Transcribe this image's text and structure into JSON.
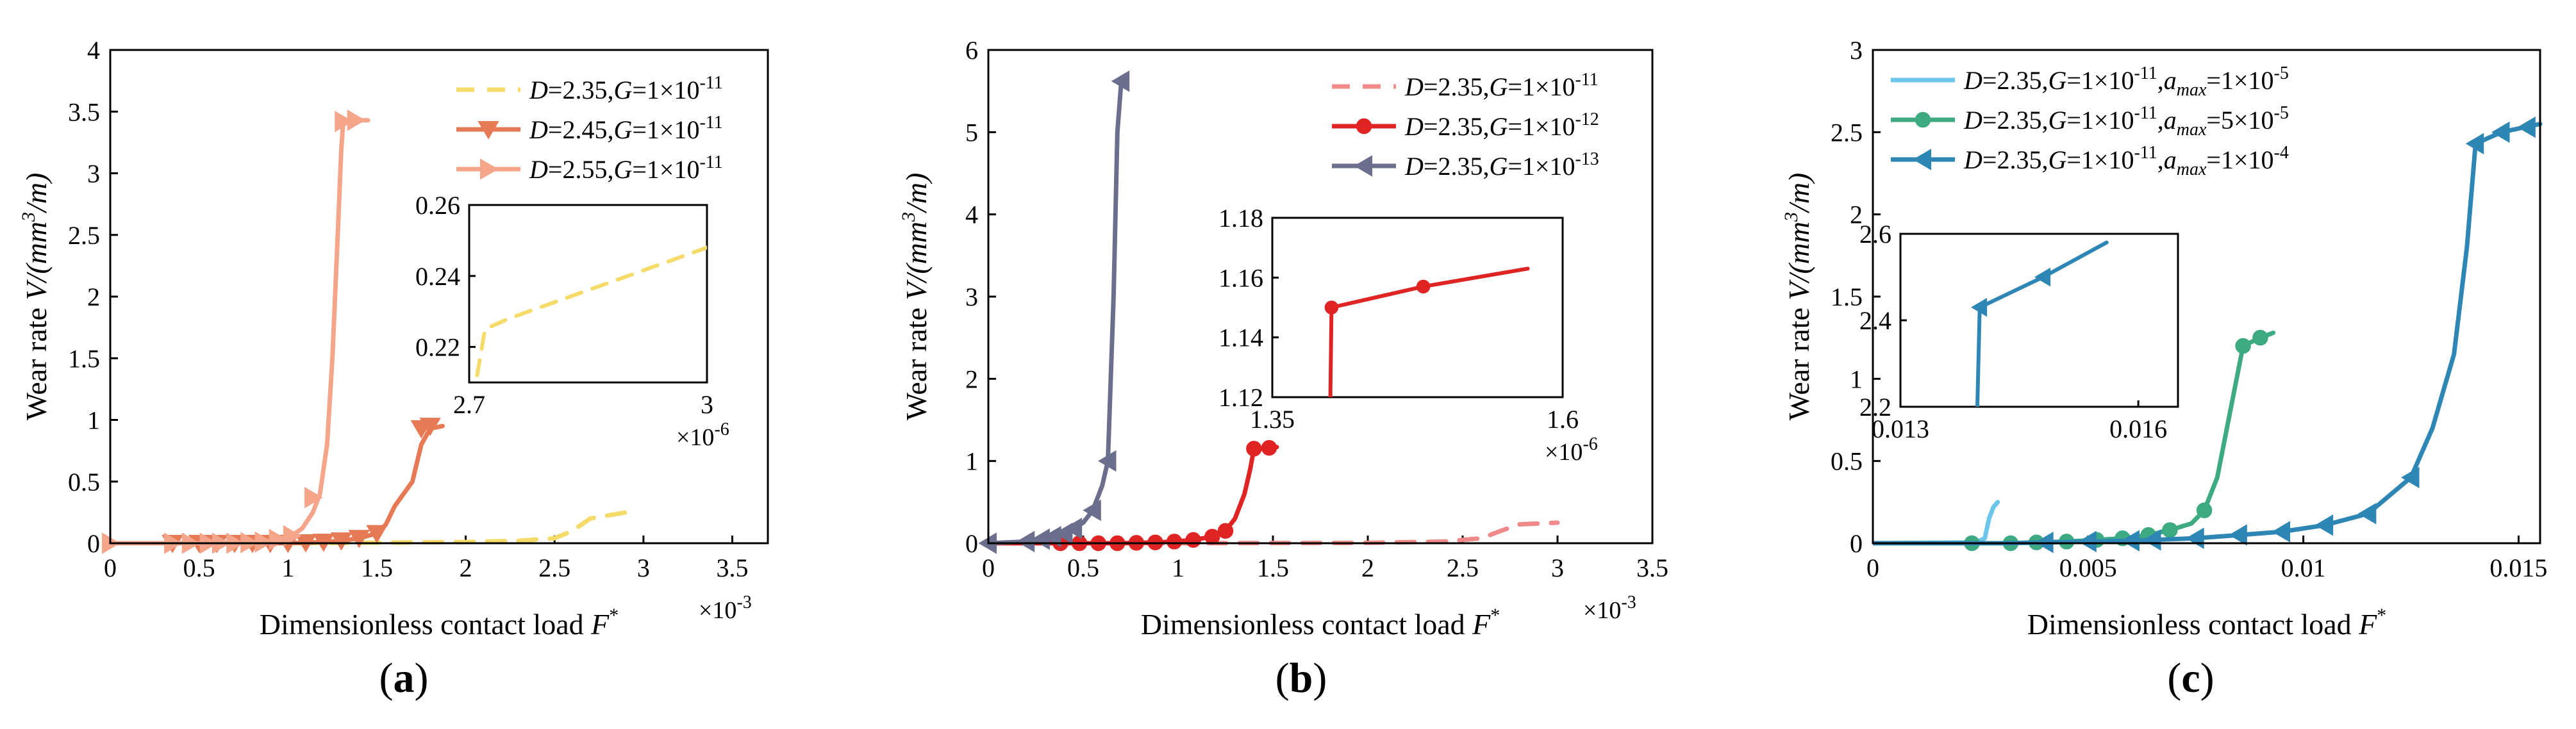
{
  "panels": [
    {
      "id": "a",
      "panel_label": "a",
      "x_multiplier": {
        "base": "×10",
        "exp": "-3"
      },
      "inset_multiplier": {
        "base": "×10",
        "exp": "-6"
      }
    },
    {
      "id": "b",
      "panel_label": "b",
      "x_multiplier": {
        "base": "×10",
        "exp": "-3"
      },
      "inset_multiplier": {
        "base": "×10",
        "exp": "-6"
      }
    },
    {
      "id": "c",
      "panel_label": "c",
      "x_multiplier": null,
      "inset_multiplier": null
    }
  ],
  "chart_data": [
    {
      "type": "line",
      "panel": "a",
      "xlabel": "Dimensionless contact load F*",
      "ylabel": "Wear rate V/(mm³/m)",
      "xlim": [
        0,
        3.7
      ],
      "ylim": [
        0,
        4
      ],
      "xticks": [
        0,
        0.5,
        1,
        1.5,
        2,
        2.5,
        3,
        3.5
      ],
      "xticklabels": [
        "0",
        "0.5",
        "1",
        "1.5",
        "2",
        "2.5",
        "3",
        "3.5"
      ],
      "yticks": [
        0,
        0.5,
        1,
        1.5,
        2,
        2.5,
        3,
        3.5,
        4
      ],
      "yticklabels": [
        "0",
        "0.5",
        "1",
        "1.5",
        "2",
        "2.5",
        "3",
        "3.5",
        "4"
      ],
      "legend_position": "top-right",
      "series": [
        {
          "name": "D=2.35,G=1×10⁻¹¹",
          "color": "#f5dc6a",
          "style": "dashed",
          "marker": "none",
          "x": [
            0,
            0.5,
            1.0,
            1.5,
            2.0,
            2.3,
            2.5,
            2.6,
            2.7,
            2.9
          ],
          "y": [
            0,
            0,
            0,
            0.005,
            0.01,
            0.02,
            0.04,
            0.1,
            0.2,
            0.25
          ]
        },
        {
          "name": "D=2.45,G=1×10⁻¹¹",
          "color": "#e57a55",
          "style": "solid",
          "marker": "triangle-down",
          "x": [
            0,
            0.35,
            0.5,
            0.6,
            0.7,
            0.8,
            0.9,
            1.0,
            1.1,
            1.2,
            1.3,
            1.4,
            1.5,
            1.55,
            1.6,
            1.7,
            1.75,
            1.8,
            1.87
          ],
          "y": [
            0,
            0,
            0,
            0,
            0,
            0,
            0,
            0,
            0.005,
            0.01,
            0.02,
            0.04,
            0.08,
            0.15,
            0.3,
            0.5,
            0.8,
            0.93,
            0.95
          ],
          "marker_x": [
            0.35,
            0.5,
            0.6,
            0.7,
            0.8,
            0.9,
            1.0,
            1.1,
            1.2,
            1.3,
            1.4,
            1.5,
            1.75,
            1.8
          ],
          "marker_y": [
            0,
            0,
            0,
            0,
            0,
            0,
            0,
            0.005,
            0.01,
            0.02,
            0.04,
            0.08,
            0.93,
            0.95
          ]
        },
        {
          "name": "D=2.55,G=1×10⁻¹¹",
          "color": "#f4a58a",
          "style": "solid",
          "marker": "triangle-right",
          "x": [
            0,
            0.35,
            0.45,
            0.55,
            0.62,
            0.7,
            0.78,
            0.86,
            0.94,
            1.02,
            1.08,
            1.14,
            1.18,
            1.22,
            1.25,
            1.28,
            1.3,
            1.31,
            1.34,
            1.38,
            1.45
          ],
          "y": [
            0,
            0,
            0,
            0,
            0,
            0,
            0.005,
            0.01,
            0.03,
            0.06,
            0.12,
            0.25,
            0.4,
            0.8,
            1.5,
            2.5,
            3.2,
            3.4,
            3.42,
            3.43,
            3.43
          ],
          "marker_x": [
            0,
            0.35,
            0.45,
            0.55,
            0.62,
            0.7,
            0.78,
            0.86,
            0.94,
            1.02,
            1.14,
            1.31,
            1.38
          ],
          "marker_y": [
            0,
            0,
            0,
            0,
            0,
            0,
            0.005,
            0.01,
            0.03,
            0.06,
            0.37,
            3.42,
            3.43
          ]
        }
      ],
      "inset": {
        "xlim": [
          2.7,
          3.0
        ],
        "ylim": [
          0.21,
          0.26
        ],
        "xticks": [
          2.7,
          3
        ],
        "xticklabels": [
          "2.7",
          "3"
        ],
        "yticks": [
          0.22,
          0.24,
          0.26
        ],
        "yticklabels": [
          "0.22",
          "0.24",
          "0.26"
        ],
        "series": [
          {
            "color": "#f5dc6a",
            "style": "dashed",
            "x": [
              2.71,
              2.72,
              2.75,
              2.85,
              3.0
            ],
            "y": [
              0.212,
              0.225,
              0.228,
              0.236,
              0.248
            ]
          }
        ]
      }
    },
    {
      "type": "line",
      "panel": "b",
      "xlabel": "Dimensionless contact load F*",
      "ylabel": "Wear rate V/(mm³/m)",
      "xlim": [
        0,
        3.5
      ],
      "ylim": [
        0,
        6
      ],
      "xticks": [
        0,
        0.5,
        1,
        1.5,
        2,
        2.5,
        3,
        3.5
      ],
      "xticklabels": [
        "0",
        "0.5",
        "1",
        "1.5",
        "2",
        "2.5",
        "3",
        "3.5"
      ],
      "yticks": [
        0,
        1,
        2,
        3,
        4,
        5,
        6
      ],
      "yticklabels": [
        "0",
        "1",
        "2",
        "3",
        "4",
        "5",
        "6"
      ],
      "legend_position": "top-right",
      "series": [
        {
          "name": "D=2.35,G=1×10⁻¹¹",
          "color": "#f08a8a",
          "style": "dashed",
          "marker": "none",
          "x": [
            0,
            1.0,
            2.0,
            2.4,
            2.6,
            2.7,
            2.8,
            3.0
          ],
          "y": [
            0,
            0,
            0.005,
            0.02,
            0.06,
            0.15,
            0.23,
            0.25
          ]
        },
        {
          "name": "D=2.35,G=1×10⁻¹²",
          "color": "#e02424",
          "style": "solid",
          "marker": "circle",
          "x": [
            0,
            0.38,
            0.48,
            0.58,
            0.68,
            0.78,
            0.88,
            0.98,
            1.08,
            1.18,
            1.25,
            1.3,
            1.35,
            1.38,
            1.4,
            1.48,
            1.52
          ],
          "y": [
            0,
            0,
            0,
            0,
            0,
            0.005,
            0.01,
            0.02,
            0.04,
            0.08,
            0.15,
            0.3,
            0.6,
            0.9,
            1.15,
            1.16,
            1.17
          ],
          "marker_x": [
            0.38,
            0.48,
            0.58,
            0.68,
            0.78,
            0.88,
            0.98,
            1.08,
            1.18,
            1.25,
            1.4,
            1.48
          ],
          "marker_y": [
            0,
            0,
            0,
            0,
            0.005,
            0.01,
            0.02,
            0.04,
            0.08,
            0.15,
            1.15,
            1.16
          ]
        },
        {
          "name": "D=2.35,G=1×10⁻¹³",
          "color": "#6b6e8c",
          "style": "solid",
          "marker": "triangle-left",
          "x": [
            0,
            0.2,
            0.28,
            0.34,
            0.4,
            0.45,
            0.5,
            0.55,
            0.6,
            0.63,
            0.66,
            0.68,
            0.7,
            0.73
          ],
          "y": [
            0,
            0.02,
            0.05,
            0.08,
            0.12,
            0.18,
            0.25,
            0.4,
            0.7,
            1.0,
            3.0,
            5.0,
            5.6,
            5.62
          ],
          "marker_x": [
            0,
            0.2,
            0.28,
            0.34,
            0.4,
            0.45,
            0.55,
            0.63,
            0.7
          ],
          "marker_y": [
            0,
            0.02,
            0.05,
            0.08,
            0.12,
            0.18,
            0.4,
            1.0,
            5.62
          ]
        }
      ],
      "inset": {
        "xlim": [
          1.35,
          1.6
        ],
        "ylim": [
          1.12,
          1.18
        ],
        "xticks": [
          1.35,
          1.6
        ],
        "xticklabels": [
          "1.35",
          "1.6"
        ],
        "yticks": [
          1.12,
          1.14,
          1.16,
          1.18
        ],
        "yticklabels": [
          "1.12",
          "1.14",
          "1.16",
          "1.18"
        ],
        "series": [
          {
            "color": "#e02424",
            "style": "solid",
            "marker": "circle",
            "x": [
              1.4,
              1.401,
              1.48,
              1.57
            ],
            "y": [
              1.12,
              1.15,
              1.157,
              1.163
            ],
            "marker_x": [
              1.401,
              1.48
            ],
            "marker_y": [
              1.15,
              1.157
            ]
          }
        ]
      }
    },
    {
      "type": "line",
      "panel": "c",
      "xlabel": "Dimensionless contact load F*",
      "ylabel": "Wear rate V/(mm³/m)",
      "xlim": [
        0,
        0.0155
      ],
      "ylim": [
        0,
        3
      ],
      "xticks": [
        0,
        0.005,
        0.01,
        0.015
      ],
      "xticklabels": [
        "0",
        "0.005",
        "0.01",
        "0.015"
      ],
      "yticks": [
        0,
        0.5,
        1,
        1.5,
        2,
        2.5,
        3
      ],
      "yticklabels": [
        "0",
        "0.5",
        "1",
        "1.5",
        "2",
        "2.5",
        "3"
      ],
      "legend_position": "top-left",
      "series": [
        {
          "name": "D=2.35,G=1×10⁻¹¹,a_max=1×10⁻⁵",
          "color": "#6cc6ea",
          "style": "solid",
          "marker": "none",
          "x": [
            0,
            0.0024,
            0.0026,
            0.0027,
            0.0028,
            0.0029
          ],
          "y": [
            0,
            0.005,
            0.03,
            0.15,
            0.22,
            0.25
          ]
        },
        {
          "name": "D=2.35,G=1×10⁻¹¹,a_max=5×10⁻⁵",
          "color": "#3daa82",
          "style": "solid",
          "marker": "circle",
          "x": [
            0,
            0.0023,
            0.0032,
            0.0038,
            0.0045,
            0.0052,
            0.0058,
            0.0064,
            0.0069,
            0.0074,
            0.0077,
            0.008,
            0.0083,
            0.0086,
            0.009,
            0.0093
          ],
          "y": [
            0,
            0,
            0,
            0.005,
            0.01,
            0.02,
            0.03,
            0.05,
            0.08,
            0.12,
            0.2,
            0.4,
            0.8,
            1.2,
            1.25,
            1.28
          ],
          "marker_x": [
            0.0023,
            0.0032,
            0.0038,
            0.0045,
            0.0052,
            0.0058,
            0.0064,
            0.0069,
            0.0077,
            0.0086,
            0.009
          ],
          "marker_y": [
            0,
            0,
            0.005,
            0.01,
            0.02,
            0.03,
            0.05,
            0.08,
            0.2,
            1.2,
            1.25
          ]
        },
        {
          "name": "D=2.35,G=1×10⁻¹¹,a_max=1×10⁻⁴",
          "color": "#2e86b5",
          "style": "solid",
          "marker": "triangle-left",
          "x": [
            0,
            0.003,
            0.004,
            0.005,
            0.006,
            0.0065,
            0.0075,
            0.0085,
            0.0095,
            0.0105,
            0.0115,
            0.0125,
            0.013,
            0.0135,
            0.0138,
            0.014,
            0.0146,
            0.0155
          ],
          "y": [
            0,
            0,
            0.005,
            0.01,
            0.015,
            0.02,
            0.03,
            0.05,
            0.07,
            0.11,
            0.18,
            0.4,
            0.7,
            1.15,
            1.8,
            2.43,
            2.5,
            2.55
          ],
          "marker_x": [
            0.004,
            0.005,
            0.006,
            0.0065,
            0.0075,
            0.0085,
            0.0095,
            0.0105,
            0.0115,
            0.0125,
            0.014,
            0.0146,
            0.0152
          ],
          "marker_y": [
            0.005,
            0.01,
            0.015,
            0.02,
            0.03,
            0.05,
            0.07,
            0.11,
            0.18,
            0.4,
            2.43,
            2.5,
            2.53
          ]
        }
      ],
      "inset": {
        "xlim": [
          0.013,
          0.0165
        ],
        "ylim": [
          2.2,
          2.6
        ],
        "xticks": [
          0.013,
          0.016
        ],
        "xticklabels": [
          "0.013",
          "0.016"
        ],
        "yticks": [
          2.2,
          2.4,
          2.6
        ],
        "yticklabels": [
          "2.2",
          "2.4",
          "2.6"
        ],
        "series": [
          {
            "color": "#2e86b5",
            "style": "solid",
            "marker": "triangle-left",
            "x": [
              0.01397,
              0.014,
              0.0148,
              0.0156
            ],
            "y": [
              2.2,
              2.43,
              2.5,
              2.58
            ],
            "marker_x": [
              0.014,
              0.0148
            ],
            "marker_y": [
              2.43,
              2.5
            ]
          }
        ]
      }
    }
  ]
}
